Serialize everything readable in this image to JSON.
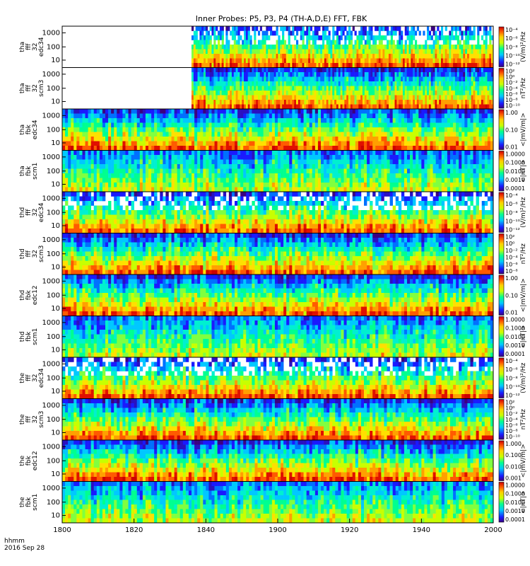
{
  "chart_data": {
    "type": "heatmap",
    "title": "Inner Probes: P5, P3, P4 (TH-A,D,E) FFT, FBK",
    "x_range": [
      1800,
      2000
    ],
    "x_ticks": [
      "1800",
      "1820",
      "1840",
      "1900",
      "1920",
      "1940",
      "2000"
    ],
    "x_footer": {
      "format": "hhmm",
      "date": "2016 Sep 28"
    },
    "y_ticks": [
      "10",
      "100",
      "1000"
    ],
    "y_scale": "log",
    "panels": [
      {
        "label": [
          "tha",
          "fff",
          "32",
          "edc34"
        ],
        "data_start": 1836,
        "colorbar": {
          "ticks": [
            "10⁻⁴",
            "10⁻⁶",
            "10⁻⁸",
            "10⁻¹⁰",
            "10⁻¹²"
          ],
          "label": "(V/m)²/Hz"
        }
      },
      {
        "label": [
          "tha",
          "fff",
          "32",
          "scm3"
        ],
        "data_start": 1836,
        "colorbar": {
          "ticks": [
            "10²",
            "10⁰",
            "10⁻²",
            "10⁻⁴",
            "10⁻⁶",
            "10⁻⁸",
            "10⁻¹⁰"
          ],
          "label": "nT²/Hz"
        }
      },
      {
        "label": [
          "tha",
          "fbk",
          "edc34"
        ],
        "data_start": 1800,
        "colorbar": {
          "ticks": [
            "1.00",
            "0.10",
            "0.01"
          ],
          "label": "<|mV/m|>"
        }
      },
      {
        "label": [
          "tha",
          "fbk",
          "scm1"
        ],
        "data_start": 1800,
        "colorbar": {
          "ticks": [
            "1.0000",
            "0.1000",
            "0.0100",
            "0.0010",
            "0.0001"
          ],
          "label": "<|nT|>"
        }
      },
      {
        "label": [
          "thd",
          "fff",
          "32",
          "edc34"
        ],
        "data_start": 1800,
        "colorbar": {
          "ticks": [
            "10⁻⁴",
            "10⁻⁶",
            "10⁻⁸",
            "10⁻¹⁰",
            "10⁻¹²"
          ],
          "label": "(V/m)²/Hz"
        }
      },
      {
        "label": [
          "thd",
          "fff",
          "32",
          "scm3"
        ],
        "data_start": 1800,
        "colorbar": {
          "ticks": [
            "10²",
            "10⁰",
            "10⁻²",
            "10⁻⁴",
            "10⁻⁶",
            "10⁻⁸"
          ],
          "label": "nT²/Hz"
        }
      },
      {
        "label": [
          "thd",
          "fbk",
          "edc12"
        ],
        "data_start": 1800,
        "colorbar": {
          "ticks": [
            "1.00",
            "0.10",
            "0.01"
          ],
          "label": "<|mV/m|>"
        }
      },
      {
        "label": [
          "thd",
          "fbk",
          "scm1"
        ],
        "data_start": 1800,
        "colorbar": {
          "ticks": [
            "1.0000",
            "0.1000",
            "0.0100",
            "0.0010",
            "0.0001"
          ],
          "label": "<|nT|>"
        }
      },
      {
        "label": [
          "the",
          "fff",
          "32",
          "edc34"
        ],
        "data_start": 1800,
        "colorbar": {
          "ticks": [
            "10⁻⁴",
            "10⁻⁶",
            "10⁻⁸",
            "10⁻¹⁰",
            "10⁻¹²"
          ],
          "label": "(V/m)²/Hz"
        }
      },
      {
        "label": [
          "the",
          "fff",
          "32",
          "scm3"
        ],
        "data_start": 1800,
        "colorbar": {
          "ticks": [
            "10²",
            "10⁰",
            "10⁻²",
            "10⁻⁴",
            "10⁻⁶",
            "10⁻⁸",
            "10⁻¹⁰"
          ],
          "label": "nT²/Hz"
        }
      },
      {
        "label": [
          "the",
          "fbk",
          "edc12"
        ],
        "data_start": 1800,
        "colorbar": {
          "ticks": [
            "1.000",
            "0.100",
            "0.010",
            "0.001"
          ],
          "label": "<|mV/m|>"
        }
      },
      {
        "label": [
          "the",
          "fbk",
          "scm1"
        ],
        "data_start": 1800,
        "colorbar": {
          "ticks": [
            "1.0000",
            "0.1000",
            "0.0100",
            "0.0010",
            "0.0001"
          ],
          "label": "<|nT|>"
        }
      }
    ]
  }
}
